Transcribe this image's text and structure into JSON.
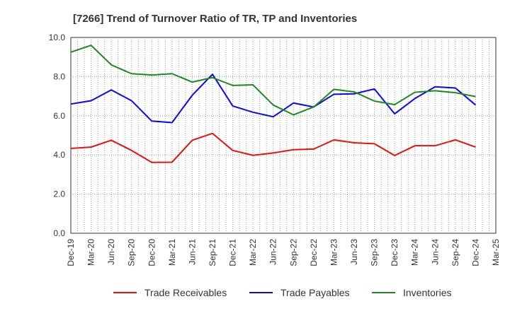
{
  "chart_data": {
    "type": "line",
    "title": "[7266]  Trend of Turnover Ratio of TR, TP and Inventories",
    "xlabel": "",
    "ylabel": "",
    "ylim": [
      0,
      10
    ],
    "yticks": [
      "0.0",
      "2.0",
      "4.0",
      "6.0",
      "8.0",
      "10.0"
    ],
    "grid": true,
    "legend_position": "bottom",
    "x_tick_labels": [
      "Dec-19",
      "Mar-20",
      "Jun-20",
      "Sep-20",
      "Dec-20",
      "Mar-21",
      "Jun-21",
      "Sep-21",
      "Dec-21",
      "Mar-22",
      "Jun-22",
      "Sep-22",
      "Dec-22",
      "Mar-23",
      "Jun-23",
      "Sep-23",
      "Dec-23",
      "Mar-24",
      "Jun-24",
      "Sep-24",
      "Dec-24",
      "Mar-25"
    ],
    "x": [
      "Dec-19",
      "Mar-20",
      "Jun-20",
      "Sep-20",
      "Dec-20",
      "Mar-21",
      "Jun-21",
      "Sep-21",
      "Dec-21",
      "Mar-22",
      "Jun-22",
      "Sep-22",
      "Dec-22",
      "Mar-23",
      "Jun-23",
      "Sep-23",
      "Dec-23",
      "Mar-24",
      "Jun-24",
      "Sep-24",
      "Dec-24"
    ],
    "series": [
      {
        "name": "Trade Receivables",
        "color": "#e8120c",
        "values": [
          4.33,
          4.4,
          4.75,
          4.23,
          3.62,
          3.63,
          4.75,
          5.1,
          4.23,
          3.98,
          4.1,
          4.27,
          4.3,
          4.77,
          4.62,
          4.57,
          3.97,
          4.47,
          4.47,
          4.77,
          4.4
        ]
      },
      {
        "name": "Trade Payables",
        "color": "#0a0ae6",
        "values": [
          6.6,
          6.77,
          7.32,
          6.77,
          5.73,
          5.65,
          7.05,
          8.12,
          6.5,
          6.18,
          5.95,
          6.65,
          6.45,
          7.1,
          7.12,
          7.37,
          6.1,
          6.88,
          7.48,
          7.42,
          6.55
        ]
      },
      {
        "name": "Inventories",
        "color": "#1e8a1e",
        "values": [
          9.25,
          9.6,
          8.6,
          8.15,
          8.08,
          8.15,
          7.72,
          7.95,
          7.55,
          7.58,
          6.55,
          6.05,
          6.45,
          7.35,
          7.22,
          6.75,
          6.57,
          7.2,
          7.28,
          7.18,
          6.98
        ]
      }
    ]
  }
}
